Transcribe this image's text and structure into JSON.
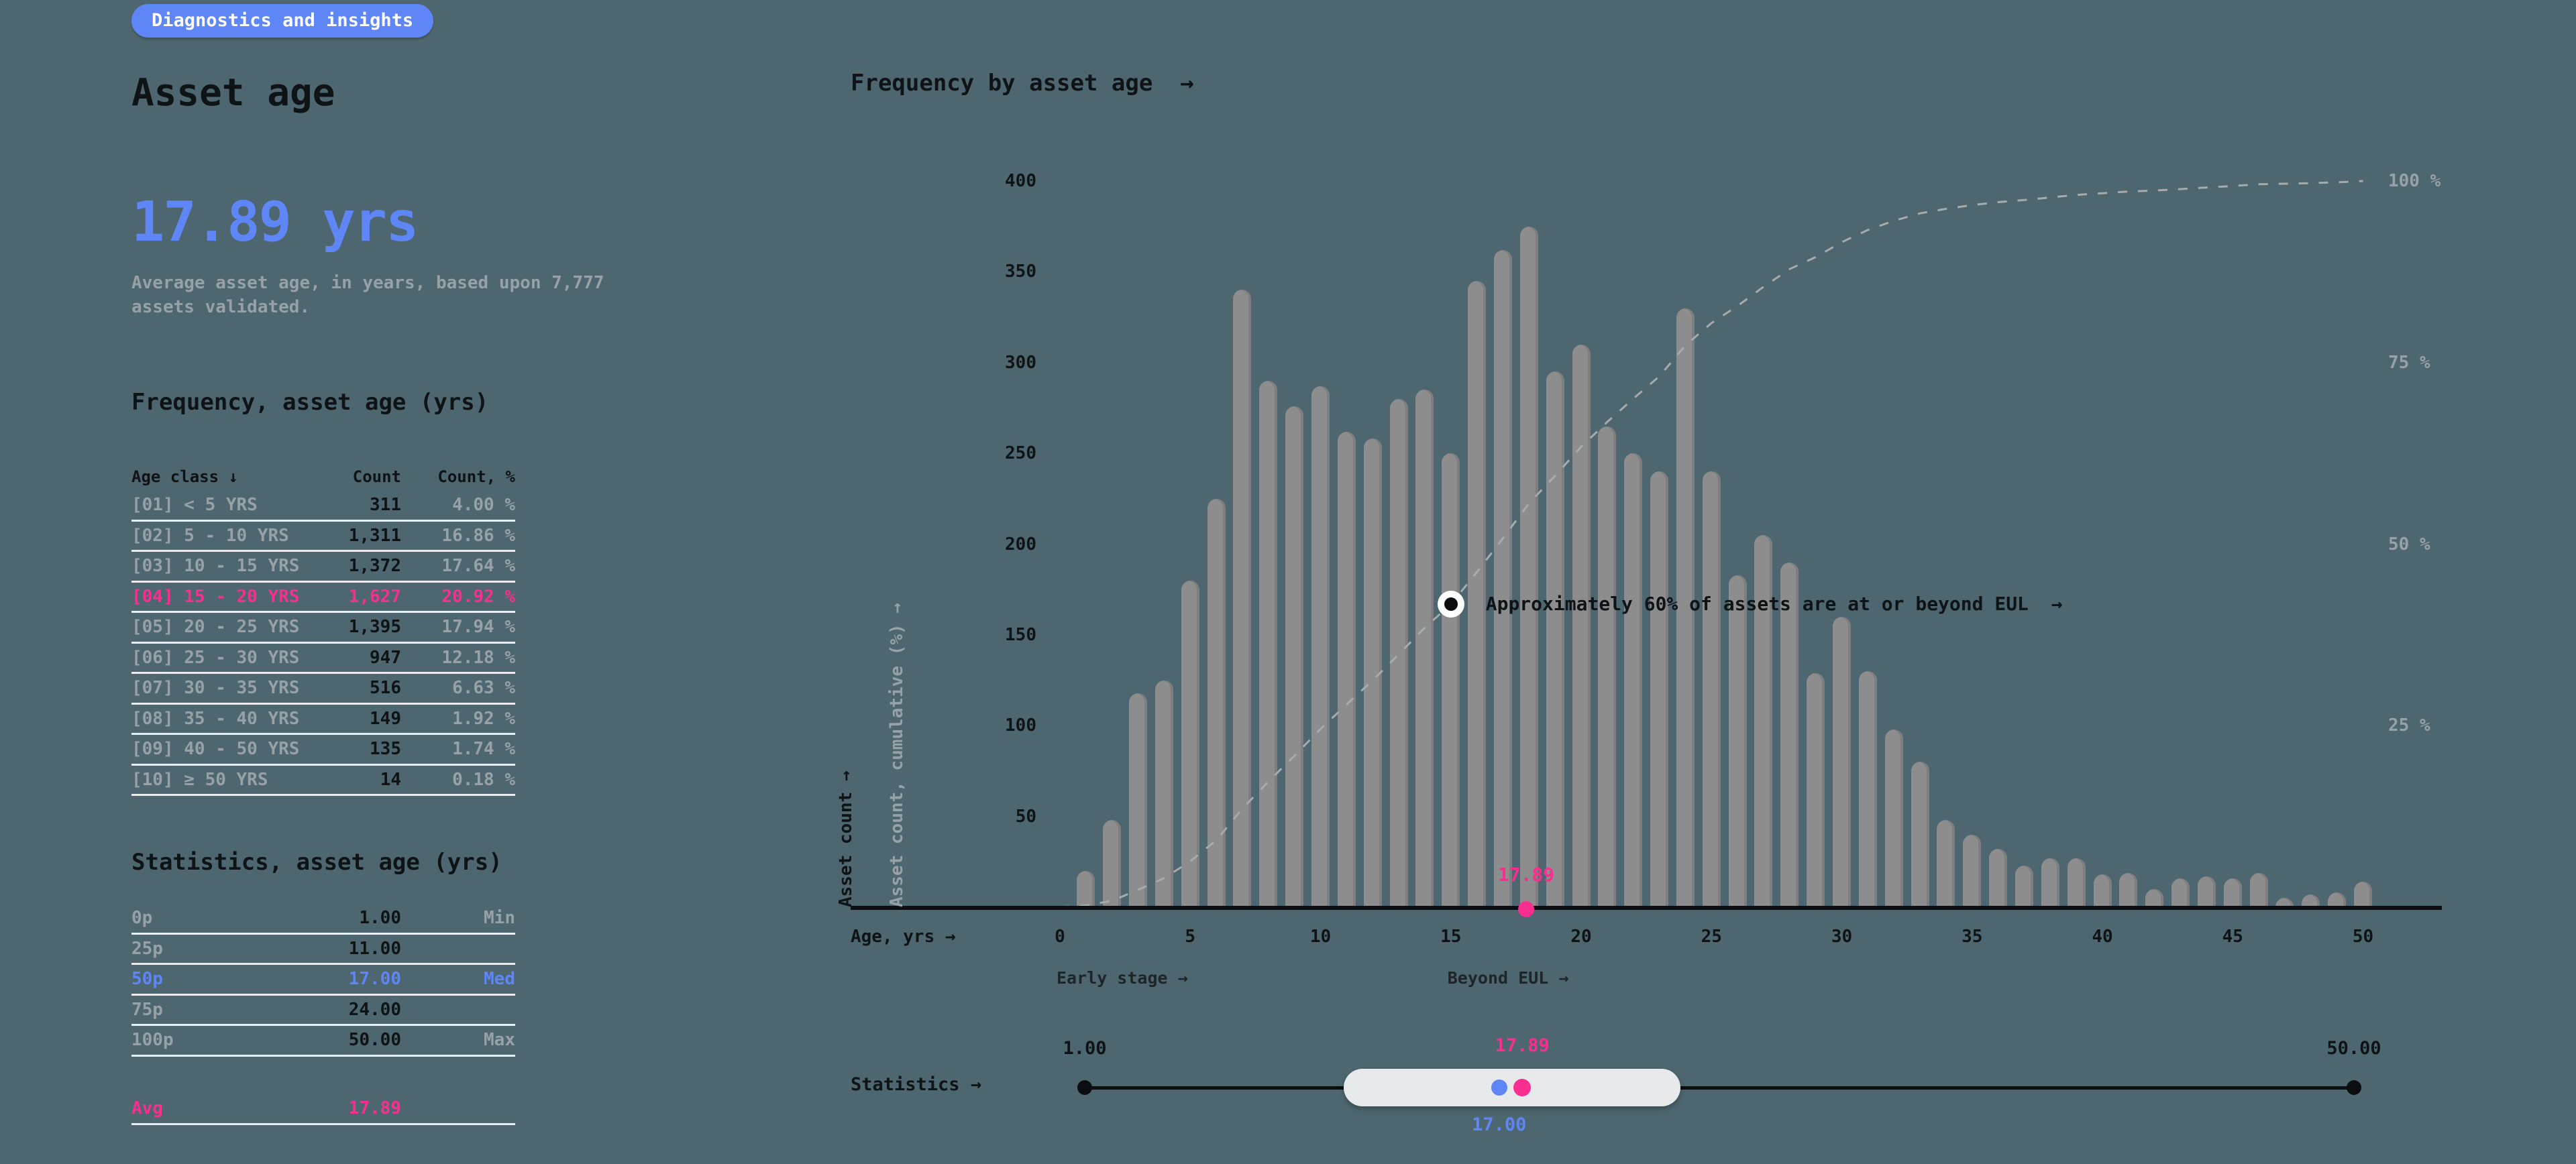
{
  "badge": "Diagnostics and insights",
  "page_title": "Asset age",
  "kpi": {
    "value": "17.89 yrs",
    "description_line1": "Average asset age, in years, based upon 7,777",
    "description_line2": "assets validated."
  },
  "frequency_table": {
    "title": "Frequency, asset age (yrs)",
    "headers": [
      "Age class ↓",
      "Count",
      "Count, %"
    ],
    "rows": [
      {
        "label": "[01] < 5 YRS",
        "count": "311",
        "pct": "4.00 %",
        "highlight": false
      },
      {
        "label": "[02] 5 - 10 YRS",
        "count": "1,311",
        "pct": "16.86 %",
        "highlight": false
      },
      {
        "label": "[03] 10 - 15 YRS",
        "count": "1,372",
        "pct": "17.64 %",
        "highlight": false
      },
      {
        "label": "[04] 15 - 20 YRS",
        "count": "1,627",
        "pct": "20.92 %",
        "highlight": true
      },
      {
        "label": "[05] 20 - 25 YRS",
        "count": "1,395",
        "pct": "17.94 %",
        "highlight": false
      },
      {
        "label": "[06] 25 - 30 YRS",
        "count": "947",
        "pct": "12.18 %",
        "highlight": false
      },
      {
        "label": "[07] 30 - 35 YRS",
        "count": "516",
        "pct": "6.63 %",
        "highlight": false
      },
      {
        "label": "[08] 35 - 40 YRS",
        "count": "149",
        "pct": "1.92 %",
        "highlight": false
      },
      {
        "label": "[09] 40 - 50 YRS",
        "count": "135",
        "pct": "1.74 %",
        "highlight": false
      },
      {
        "label": "[10] ≥ 50 YRS",
        "count": "14",
        "pct": "0.18 %",
        "highlight": false
      }
    ]
  },
  "stats_table": {
    "title": "Statistics, asset age (yrs)",
    "rows": [
      {
        "label": "0p",
        "value": "1.00",
        "tag": "Min",
        "accent": ""
      },
      {
        "label": "25p",
        "value": "11.00",
        "tag": "",
        "accent": ""
      },
      {
        "label": "50p",
        "value": "17.00",
        "tag": "Med",
        "accent": "blue"
      },
      {
        "label": "75p",
        "value": "24.00",
        "tag": "",
        "accent": ""
      },
      {
        "label": "100p",
        "value": "50.00",
        "tag": "Max",
        "accent": ""
      }
    ],
    "avg_row": {
      "label": "Avg",
      "value": "17.89"
    }
  },
  "chart": {
    "title": "Frequency by asset age  →",
    "xlabel": "Age, yrs →",
    "ylabel_left": "Asset count →",
    "ylabel_right": "Asset count, cumulative (%) →",
    "y_ticks": [
      400,
      350,
      300,
      250,
      200,
      150,
      100,
      50
    ],
    "pct_ticks": [
      {
        "label": "100 %",
        "pct": 100
      },
      {
        "label": "75 %",
        "pct": 75
      },
      {
        "label": "50 %",
        "pct": 50
      },
      {
        "label": "25 %",
        "pct": 25
      }
    ],
    "x_ticks": [
      0,
      5,
      10,
      15,
      20,
      25,
      30,
      35,
      40,
      45,
      50
    ],
    "stage_labels": [
      {
        "text": "Early stage →",
        "age": 0
      },
      {
        "text": "Beyond EUL →",
        "age": 15
      }
    ],
    "annotation": {
      "text": "Approximately 60% of assets are at or beyond EUL  →",
      "age": 15
    },
    "avg_marker": {
      "label": "17.89",
      "age": 17.89
    }
  },
  "chart_data": {
    "type": "bar",
    "title": "Frequency by asset age",
    "xlabel": "Age, yrs",
    "ylabel": "Asset count",
    "ylabel_secondary": "Asset count, cumulative (%)",
    "ylim": [
      0,
      400
    ],
    "secondary_ylim": [
      0,
      100
    ],
    "total_assets": 7777,
    "ages": [
      1,
      2,
      3,
      4,
      5,
      6,
      7,
      8,
      9,
      10,
      11,
      12,
      13,
      14,
      15,
      16,
      17,
      18,
      19,
      20,
      21,
      22,
      23,
      24,
      25,
      26,
      27,
      28,
      29,
      30,
      31,
      32,
      33,
      34,
      35,
      36,
      37,
      38,
      39,
      40,
      41,
      42,
      43,
      44,
      45,
      46,
      47,
      48,
      49,
      50
    ],
    "values": [
      20,
      48,
      118,
      125,
      180,
      225,
      340,
      290,
      276,
      287,
      262,
      258,
      280,
      285,
      250,
      345,
      362,
      375,
      295,
      310,
      265,
      250,
      240,
      330,
      240,
      183,
      205,
      190,
      129,
      160,
      130,
      98,
      80,
      48,
      40,
      32,
      23,
      27,
      27,
      18,
      19,
      10,
      16,
      17,
      16,
      19,
      5,
      7,
      8,
      14
    ],
    "secondary_series": {
      "name": "Asset count, cumulative (%)",
      "type": "line",
      "style": "dashed",
      "derived": "cumulative percent of total"
    }
  },
  "slider": {
    "label": "Statistics →",
    "min": 1,
    "max": 50,
    "q1": 11,
    "q3": 24,
    "median": 17,
    "avg": 17.89,
    "min_label": "1.00",
    "max_label": "50.00",
    "median_label": "17.00",
    "avg_label": "17.89"
  },
  "colors": {
    "background": "#4D6670",
    "ink": "#0E1316",
    "muted": "#96A2A7",
    "bar": "#8D8D8D",
    "accent_blue": "#5E86F7",
    "accent_pink": "#FA2E8F",
    "paper": "#E9EDEF"
  }
}
